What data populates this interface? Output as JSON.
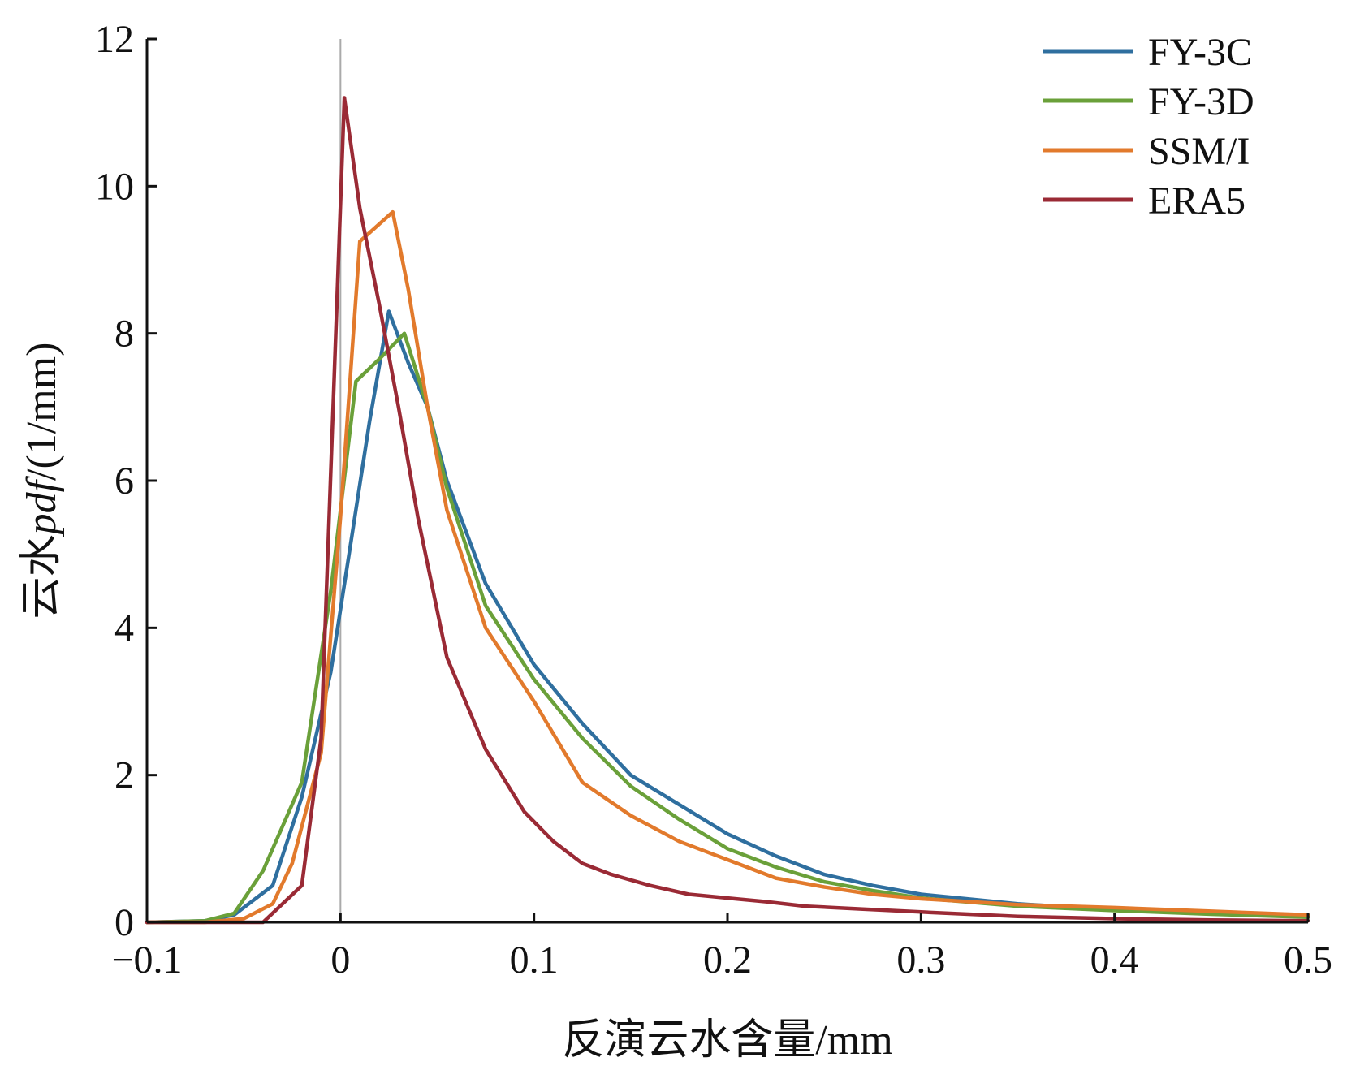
{
  "chart_data": {
    "type": "line",
    "title": "",
    "xlabel": "反演云水含量/mm",
    "ylabel": {
      "prefix": "云水",
      "italic": "pdf",
      "suffix": "/(1/mm)"
    },
    "xlim": [
      -0.1,
      0.5
    ],
    "ylim": [
      0,
      12
    ],
    "xticks": [
      -0.1,
      0,
      0.1,
      0.2,
      0.3,
      0.4,
      0.5
    ],
    "xtick_labels": [
      "−0.1",
      "0",
      "0.1",
      "0.2",
      "0.3",
      "0.4",
      "0.5"
    ],
    "yticks": [
      0,
      2,
      4,
      6,
      8,
      10,
      12
    ],
    "ytick_labels": [
      "0",
      "2",
      "4",
      "6",
      "8",
      "10",
      "12"
    ],
    "grid": false,
    "legend_position": "top-right",
    "reference_line": {
      "x": 0,
      "color": "#aaaaaa"
    },
    "series": [
      {
        "name": "FY-3C",
        "color": "#2f6f9f",
        "x": [
          -0.1,
          -0.07,
          -0.055,
          -0.035,
          -0.02,
          -0.005,
          0.005,
          0.015,
          0.025,
          0.035,
          0.045,
          0.055,
          0.075,
          0.1,
          0.125,
          0.15,
          0.175,
          0.2,
          0.225,
          0.25,
          0.275,
          0.3,
          0.35,
          0.4,
          0.45,
          0.5
        ],
        "y": [
          0,
          0.02,
          0.1,
          0.5,
          1.7,
          3.4,
          5.1,
          6.8,
          8.3,
          7.6,
          7.0,
          6.0,
          4.6,
          3.5,
          2.7,
          2.0,
          1.6,
          1.2,
          0.9,
          0.65,
          0.5,
          0.38,
          0.25,
          0.17,
          0.12,
          0.08
        ]
      },
      {
        "name": "FY-3D",
        "color": "#6aa039",
        "x": [
          -0.1,
          -0.07,
          -0.055,
          -0.04,
          -0.02,
          -0.005,
          0.008,
          0.02,
          0.033,
          0.045,
          0.055,
          0.075,
          0.1,
          0.125,
          0.15,
          0.175,
          0.2,
          0.225,
          0.25,
          0.275,
          0.3,
          0.35,
          0.4,
          0.45,
          0.5
        ],
        "y": [
          0,
          0.02,
          0.12,
          0.7,
          1.9,
          4.5,
          7.35,
          7.65,
          8.0,
          7.0,
          5.9,
          4.3,
          3.3,
          2.5,
          1.85,
          1.4,
          1.0,
          0.75,
          0.55,
          0.43,
          0.33,
          0.22,
          0.16,
          0.11,
          0.07
        ]
      },
      {
        "name": "SSM/I",
        "color": "#e27a2c",
        "x": [
          -0.1,
          -0.07,
          -0.05,
          -0.035,
          -0.025,
          -0.01,
          0.0,
          0.01,
          0.027,
          0.035,
          0.045,
          0.055,
          0.075,
          0.1,
          0.125,
          0.15,
          0.175,
          0.2,
          0.225,
          0.25,
          0.275,
          0.3,
          0.35,
          0.4,
          0.45,
          0.5
        ],
        "y": [
          0,
          0.0,
          0.05,
          0.25,
          0.8,
          2.3,
          5.5,
          9.25,
          9.65,
          8.6,
          7.0,
          5.6,
          4.0,
          3.0,
          1.9,
          1.45,
          1.1,
          0.85,
          0.6,
          0.48,
          0.38,
          0.32,
          0.24,
          0.2,
          0.15,
          0.1
        ]
      },
      {
        "name": "ERA5",
        "color": "#9a2a35",
        "x": [
          -0.1,
          -0.07,
          -0.04,
          -0.02,
          -0.01,
          0.002,
          0.01,
          0.02,
          0.03,
          0.04,
          0.055,
          0.075,
          0.095,
          0.11,
          0.125,
          0.14,
          0.16,
          0.18,
          0.2,
          0.22,
          0.24,
          0.27,
          0.3,
          0.35,
          0.4,
          0.45,
          0.5
        ],
        "y": [
          0,
          0.0,
          0.0,
          0.5,
          2.5,
          11.2,
          9.7,
          8.4,
          7.0,
          5.5,
          3.6,
          2.35,
          1.5,
          1.1,
          0.8,
          0.65,
          0.5,
          0.38,
          0.33,
          0.28,
          0.22,
          0.18,
          0.14,
          0.08,
          0.05,
          0.03,
          0.02
        ]
      }
    ]
  }
}
